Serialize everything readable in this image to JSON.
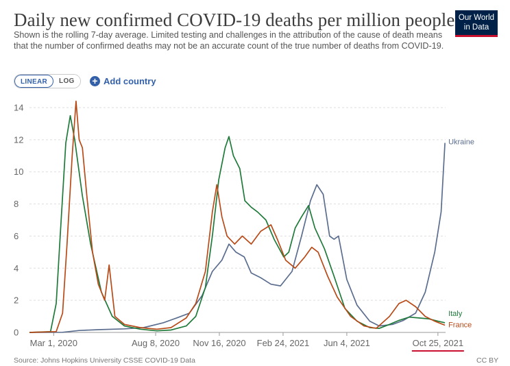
{
  "header": {
    "title": "Daily new confirmed COVID-19 deaths per million people",
    "subtitle": "Shown is the rolling 7-day average. Limited testing and challenges in the attribution of the cause of death means that the number of confirmed deaths may not be an accurate count of the true number of deaths from COVID-19.",
    "logo_line1": "Our World",
    "logo_line2": "in Data"
  },
  "controls": {
    "linear_label": "LINEAR",
    "log_label": "LOG",
    "add_country_label": "Add country",
    "active_scale": "linear"
  },
  "footer": {
    "source": "Source: Johns Hopkins University CSSE COVID-19 Data",
    "license": "CC BY"
  },
  "chart_data": {
    "type": "line",
    "title": "Daily new confirmed COVID-19 deaths per million people",
    "xlabel": "",
    "ylabel": "",
    "ylim": [
      0,
      14
    ],
    "yticks": [
      0,
      2,
      4,
      6,
      8,
      10,
      12,
      14
    ],
    "xlim": [
      "2020-01-23",
      "2021-11-06"
    ],
    "xticks": [
      {
        "date": "2020-03-01",
        "label": "Mar 1, 2020"
      },
      {
        "date": "2020-08-08",
        "label": "Aug 8, 2020"
      },
      {
        "date": "2020-11-16",
        "label": "Nov 16, 2020"
      },
      {
        "date": "2021-02-24",
        "label": "Feb 24, 2021"
      },
      {
        "date": "2021-06-04",
        "label": "Jun 4, 2021"
      },
      {
        "date": "2021-10-25",
        "label": "Oct 25, 2021"
      }
    ],
    "grid": "horizontal-dashed",
    "series": [
      {
        "name": "Ukraine",
        "color": "#5b6d8f",
        "points": [
          [
            "2020-01-23",
            0
          ],
          [
            "2020-03-15",
            0.01
          ],
          [
            "2020-04-10",
            0.12
          ],
          [
            "2020-05-10",
            0.17
          ],
          [
            "2020-06-20",
            0.22
          ],
          [
            "2020-07-20",
            0.3
          ],
          [
            "2020-08-20",
            0.6
          ],
          [
            "2020-09-10",
            0.9
          ],
          [
            "2020-09-30",
            1.2
          ],
          [
            "2020-10-20",
            2.3
          ],
          [
            "2020-11-05",
            3.8
          ],
          [
            "2020-11-20",
            4.5
          ],
          [
            "2020-12-01",
            5.5
          ],
          [
            "2020-12-12",
            5.0
          ],
          [
            "2020-12-25",
            4.7
          ],
          [
            "2021-01-05",
            3.7
          ],
          [
            "2021-01-20",
            3.4
          ],
          [
            "2021-02-05",
            3.0
          ],
          [
            "2021-02-20",
            2.9
          ],
          [
            "2021-03-10",
            3.8
          ],
          [
            "2021-03-25",
            6.0
          ],
          [
            "2021-04-08",
            8.2
          ],
          [
            "2021-04-18",
            9.2
          ],
          [
            "2021-04-28",
            8.6
          ],
          [
            "2021-05-08",
            6.0
          ],
          [
            "2021-05-15",
            5.8
          ],
          [
            "2021-05-22",
            6.0
          ],
          [
            "2021-06-04",
            3.3
          ],
          [
            "2021-06-20",
            1.7
          ],
          [
            "2021-07-10",
            0.7
          ],
          [
            "2021-07-25",
            0.4
          ],
          [
            "2021-08-15",
            0.5
          ],
          [
            "2021-09-01",
            0.75
          ],
          [
            "2021-09-20",
            1.2
          ],
          [
            "2021-10-05",
            2.5
          ],
          [
            "2021-10-20",
            5.0
          ],
          [
            "2021-10-30",
            7.5
          ],
          [
            "2021-11-05",
            11.8
          ]
        ]
      },
      {
        "name": "Italy",
        "color": "#1f7a3a",
        "points": [
          [
            "2020-01-23",
            0
          ],
          [
            "2020-02-25",
            0.05
          ],
          [
            "2020-03-05",
            1.8
          ],
          [
            "2020-03-12",
            6.5
          ],
          [
            "2020-03-20",
            11.8
          ],
          [
            "2020-03-27",
            13.5
          ],
          [
            "2020-04-03",
            12.0
          ],
          [
            "2020-04-15",
            8.5
          ],
          [
            "2020-04-28",
            5.5
          ],
          [
            "2020-05-15",
            2.5
          ],
          [
            "2020-06-01",
            1.0
          ],
          [
            "2020-06-20",
            0.4
          ],
          [
            "2020-07-15",
            0.2
          ],
          [
            "2020-08-10",
            0.1
          ],
          [
            "2020-09-01",
            0.15
          ],
          [
            "2020-09-25",
            0.4
          ],
          [
            "2020-10-10",
            1.0
          ],
          [
            "2020-10-25",
            2.8
          ],
          [
            "2020-11-05",
            6.0
          ],
          [
            "2020-11-15",
            9.5
          ],
          [
            "2020-11-25",
            11.5
          ],
          [
            "2020-12-01",
            12.2
          ],
          [
            "2020-12-08",
            11.0
          ],
          [
            "2020-12-18",
            10.2
          ],
          [
            "2020-12-26",
            8.2
          ],
          [
            "2021-01-05",
            7.8
          ],
          [
            "2021-01-15",
            7.5
          ],
          [
            "2021-01-28",
            7.0
          ],
          [
            "2021-02-10",
            5.8
          ],
          [
            "2021-02-25",
            4.7
          ],
          [
            "2021-03-05",
            5.0
          ],
          [
            "2021-03-15",
            6.5
          ],
          [
            "2021-03-25",
            7.2
          ],
          [
            "2021-04-05",
            7.9
          ],
          [
            "2021-04-15",
            6.5
          ],
          [
            "2021-04-30",
            5.2
          ],
          [
            "2021-05-15",
            3.5
          ],
          [
            "2021-06-01",
            1.5
          ],
          [
            "2021-06-20",
            0.7
          ],
          [
            "2021-07-10",
            0.3
          ],
          [
            "2021-07-25",
            0.25
          ],
          [
            "2021-08-10",
            0.5
          ],
          [
            "2021-08-25",
            0.75
          ],
          [
            "2021-09-10",
            0.95
          ],
          [
            "2021-09-25",
            0.9
          ],
          [
            "2021-10-10",
            0.85
          ],
          [
            "2021-10-25",
            0.7
          ],
          [
            "2021-11-05",
            0.6
          ]
        ]
      },
      {
        "name": "France",
        "color": "#b84a18",
        "points": [
          [
            "2020-01-23",
            0
          ],
          [
            "2020-03-05",
            0.05
          ],
          [
            "2020-03-15",
            1.2
          ],
          [
            "2020-03-22",
            5.5
          ],
          [
            "2020-03-30",
            11.0
          ],
          [
            "2020-04-05",
            14.4
          ],
          [
            "2020-04-10",
            12.0
          ],
          [
            "2020-04-15",
            11.5
          ],
          [
            "2020-04-22",
            8.5
          ],
          [
            "2020-05-01",
            5.0
          ],
          [
            "2020-05-10",
            3.0
          ],
          [
            "2020-05-20",
            2.0
          ],
          [
            "2020-05-27",
            4.2
          ],
          [
            "2020-06-05",
            1.0
          ],
          [
            "2020-06-20",
            0.5
          ],
          [
            "2020-07-15",
            0.3
          ],
          [
            "2020-08-10",
            0.2
          ],
          [
            "2020-09-01",
            0.3
          ],
          [
            "2020-09-25",
            0.9
          ],
          [
            "2020-10-10",
            1.8
          ],
          [
            "2020-10-25",
            3.8
          ],
          [
            "2020-11-05",
            7.5
          ],
          [
            "2020-11-12",
            9.2
          ],
          [
            "2020-11-20",
            7.2
          ],
          [
            "2020-11-28",
            6.0
          ],
          [
            "2020-12-10",
            5.5
          ],
          [
            "2020-12-22",
            6.0
          ],
          [
            "2021-01-05",
            5.5
          ],
          [
            "2021-01-20",
            6.3
          ],
          [
            "2021-02-05",
            6.7
          ],
          [
            "2021-02-15",
            5.8
          ],
          [
            "2021-02-28",
            4.5
          ],
          [
            "2021-03-15",
            4.0
          ],
          [
            "2021-03-30",
            4.7
          ],
          [
            "2021-04-10",
            5.3
          ],
          [
            "2021-04-20",
            5.0
          ],
          [
            "2021-05-05",
            3.5
          ],
          [
            "2021-05-20",
            2.2
          ],
          [
            "2021-06-10",
            1.0
          ],
          [
            "2021-07-01",
            0.4
          ],
          [
            "2021-07-20",
            0.25
          ],
          [
            "2021-08-10",
            1.0
          ],
          [
            "2021-08-25",
            1.8
          ],
          [
            "2021-09-05",
            2.0
          ],
          [
            "2021-09-20",
            1.6
          ],
          [
            "2021-10-05",
            1.0
          ],
          [
            "2021-10-20",
            0.7
          ],
          [
            "2021-11-05",
            0.45
          ]
        ]
      }
    ],
    "highlight_tick": "Oct 25, 2021",
    "highlight_color": "#c8102e"
  }
}
